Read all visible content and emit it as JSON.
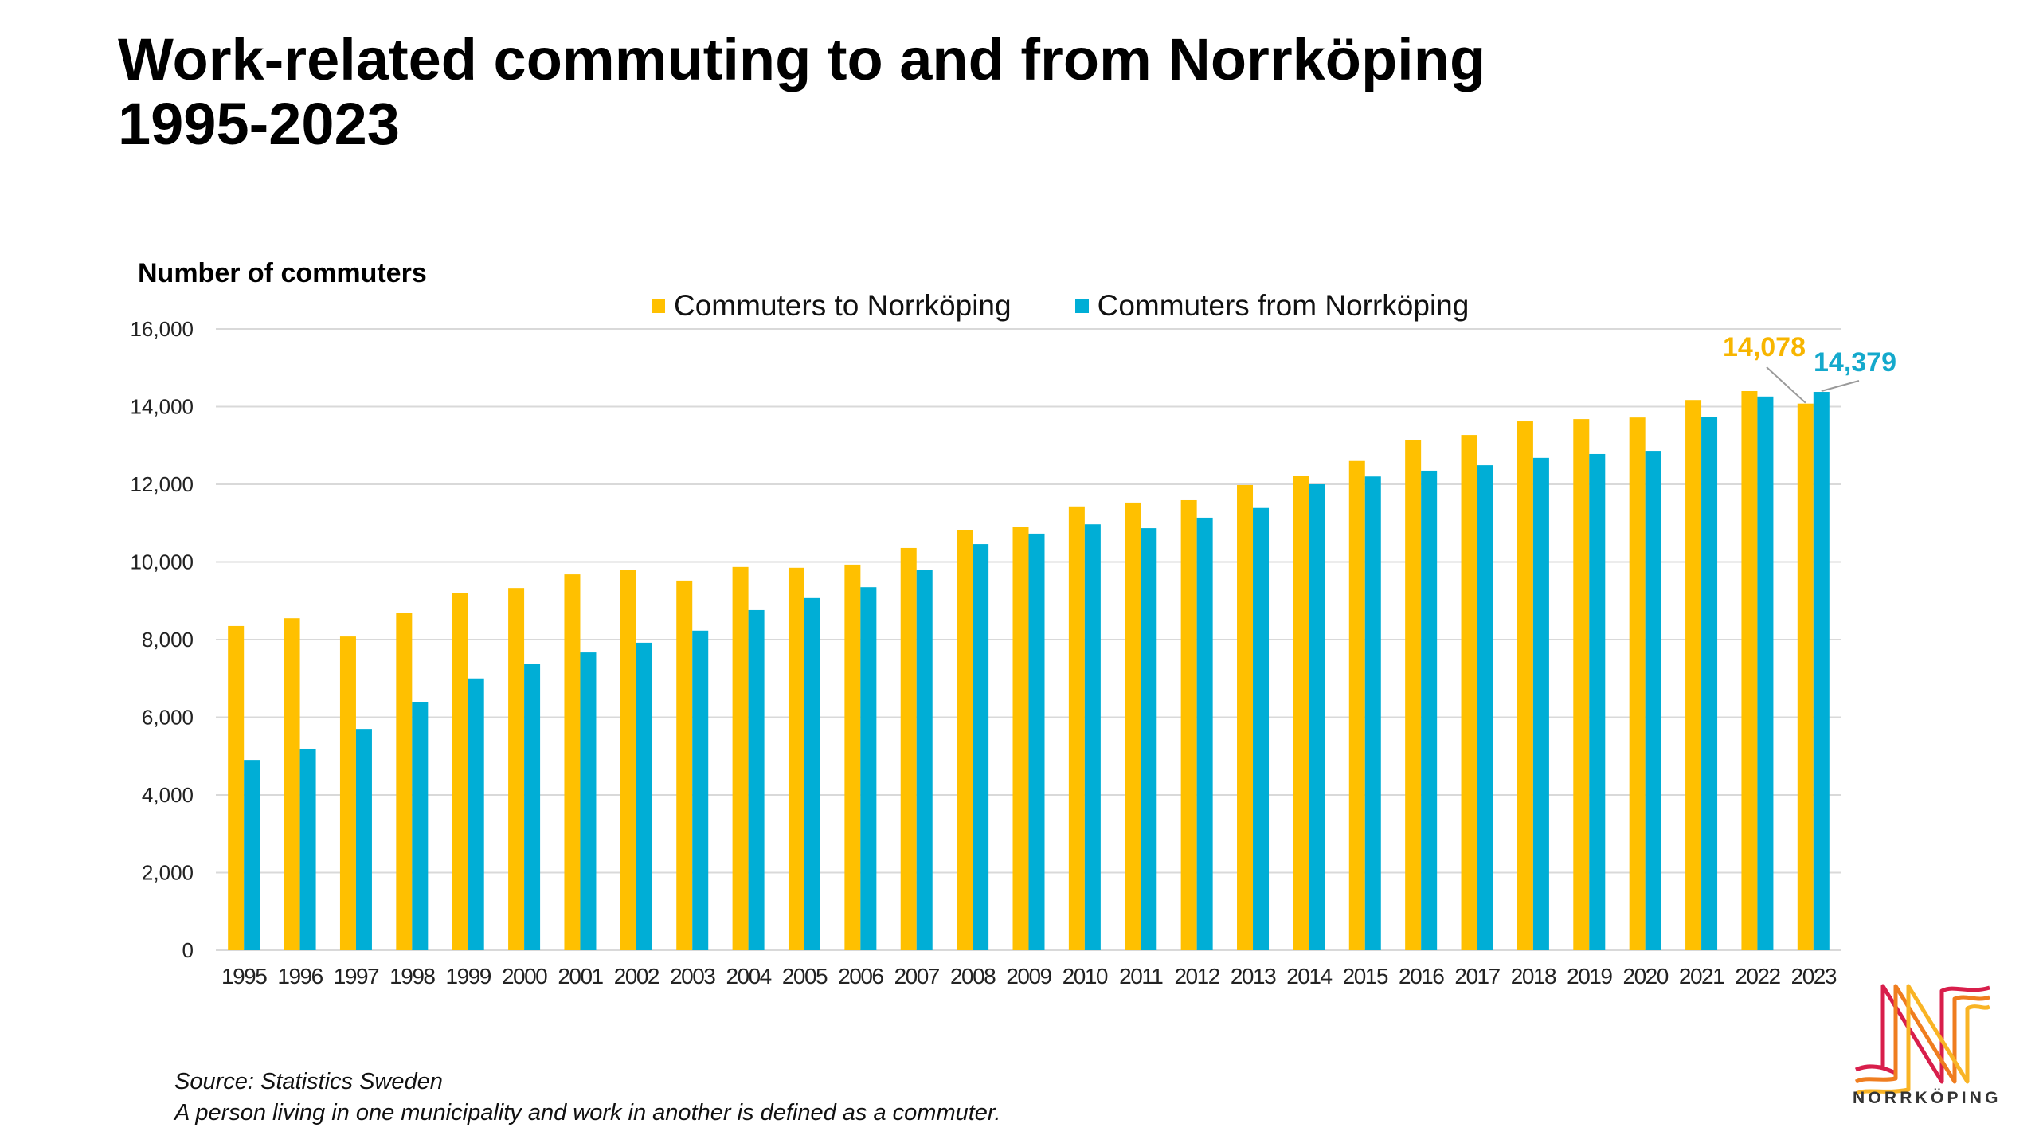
{
  "title": {
    "line1": "Work-related commuting to and from Norrköping",
    "line2": "1995-2023"
  },
  "footer": {
    "source": "Source: Statistics Sweden",
    "note": "A person living in one municipality and work in another is defined as a commuter."
  },
  "logo": {
    "icon": "norrkoping-n-logo-icon",
    "text": "NORRKÖPING",
    "colors": [
      "#D81E4B",
      "#EF7D1F",
      "#F9B425"
    ]
  },
  "chart_data": {
    "type": "bar",
    "title": "Work-related commuting to and from Norrköping 1995-2023",
    "ylabel": "Number of commuters",
    "xlabel": "",
    "ylim": [
      0,
      16000
    ],
    "yticks": [
      0,
      2000,
      4000,
      6000,
      8000,
      10000,
      12000,
      14000,
      16000
    ],
    "ytick_labels": [
      "0",
      "2,000",
      "4,000",
      "6,000",
      "8,000",
      "10,000",
      "12,000",
      "14,000",
      "16,000"
    ],
    "grid": true,
    "legend_position": "top-center",
    "categories": [
      "1995",
      "1996",
      "1997",
      "1998",
      "1999",
      "2000",
      "2001",
      "2002",
      "2003",
      "2004",
      "2005",
      "2006",
      "2007",
      "2008",
      "2009",
      "2010",
      "2011",
      "2012",
      "2013",
      "2014",
      "2015",
      "2016",
      "2017",
      "2018",
      "2019",
      "2020",
      "2021",
      "2022",
      "2023"
    ],
    "series": [
      {
        "name": "Commuters to Norrköping",
        "color": "#FFC000",
        "label_color": "#F7B500",
        "values": [
          8350,
          8550,
          8080,
          8680,
          9190,
          9330,
          9680,
          9800,
          9520,
          9870,
          9850,
          9930,
          10360,
          10830,
          10910,
          11430,
          11530,
          11590,
          11980,
          12210,
          12600,
          13130,
          13270,
          13620,
          13680,
          13720,
          14170,
          14400,
          14078
        ]
      },
      {
        "name": "Commuters from Norrköping",
        "color": "#00AED6",
        "label_color": "#14A9CC",
        "values": [
          4900,
          5190,
          5700,
          6400,
          7000,
          7380,
          7670,
          7920,
          8230,
          8760,
          9070,
          9350,
          9800,
          10460,
          10730,
          10970,
          10870,
          11140,
          11390,
          12000,
          12200,
          12350,
          12490,
          12680,
          12780,
          12860,
          13740,
          14260,
          14379
        ]
      }
    ],
    "annotations": [
      {
        "series": 0,
        "category": "2023",
        "text": "14,078"
      },
      {
        "series": 1,
        "category": "2023",
        "text": "14,379"
      }
    ]
  }
}
